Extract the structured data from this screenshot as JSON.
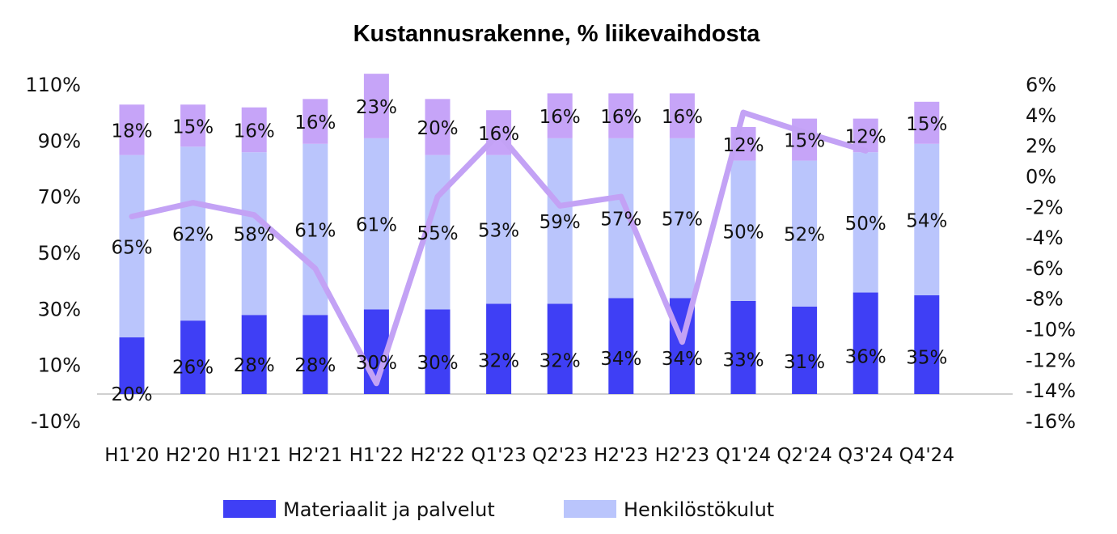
{
  "chart_data": {
    "type": "bar",
    "title": "Kustannusrakenne, % liikevaihdosta",
    "categories": [
      "H1'20",
      "H2'20",
      "H1'21",
      "H2'21",
      "H1'22",
      "H2'22",
      "Q1'23",
      "Q2'23",
      "H2'23",
      "H2'23",
      "Q1'24",
      "Q2'24",
      "Q3'24",
      "Q4'24"
    ],
    "series": [
      {
        "name": "Materiaalit ja palvelut",
        "color": "#3f3ff5",
        "values": [
          20,
          26,
          28,
          28,
          30,
          30,
          32,
          32,
          34,
          34,
          33,
          31,
          36,
          35
        ],
        "labels": [
          "20%",
          "26%",
          "28%",
          "28%",
          "30%",
          "30%",
          "32%",
          "32%",
          "34%",
          "34%",
          "33%",
          "31%",
          "36%",
          "35%"
        ]
      },
      {
        "name": "Henkilöstökulut",
        "color": "#bac5fc",
        "values": [
          65,
          62,
          58,
          61,
          61,
          55,
          53,
          59,
          57,
          57,
          50,
          52,
          50,
          54
        ],
        "labels": [
          "65%",
          "62%",
          "58%",
          "61%",
          "61%",
          "55%",
          "53%",
          "59%",
          "57%",
          "57%",
          "50%",
          "52%",
          "50%",
          "54%"
        ]
      },
      {
        "name": "",
        "color": "#c6a4f8",
        "values": [
          18,
          15,
          16,
          16,
          23,
          20,
          16,
          16,
          16,
          16,
          12,
          15,
          12,
          15
        ],
        "labels": [
          "18%",
          "15%",
          "16%",
          "16%",
          "23%",
          "20%",
          "16%",
          "16%",
          "16%",
          "16%",
          "12%",
          "15%",
          "12%",
          "15%"
        ]
      }
    ],
    "line_series": {
      "name": "",
      "color": "#c3a2f5",
      "axis": "right",
      "values": [
        -2.6,
        -1.7,
        -2.5,
        -6.0,
        -13.5,
        -1.3,
        2.8,
        -1.9,
        -1.3,
        -10.8,
        4.2,
        2.9,
        1.7,
        null
      ]
    },
    "y_left": {
      "min": -10,
      "max": 110,
      "ticks": [
        "110%",
        "90%",
        "70%",
        "50%",
        "30%",
        "10%",
        "-10%"
      ]
    },
    "y_right": {
      "min": -16,
      "max": 6,
      "ticks": [
        "6%",
        "4%",
        "2%",
        "0%",
        "-2%",
        "-4%",
        "-6%",
        "-8%",
        "-10%",
        "-12%",
        "-14%",
        "-16%"
      ]
    },
    "legend": [
      {
        "label": "Materiaalit ja palvelut",
        "color": "#3f3ff5"
      },
      {
        "label": "Henkilöstökulut",
        "color": "#bac5fc"
      }
    ],
    "legend_position": "bottom",
    "grid": false
  }
}
